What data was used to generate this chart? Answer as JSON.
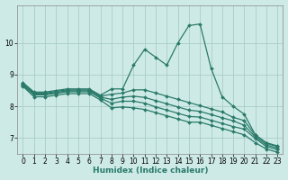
{
  "xlabel": "Humidex (Indice chaleur)",
  "ylabel": "",
  "bg_color": "#ceeae6",
  "line_color": "#2a7a6a",
  "grid_color": "#a8cdc8",
  "xlim": [
    -0.5,
    23.5
  ],
  "ylim": [
    6.5,
    11.2
  ],
  "xticks": [
    0,
    1,
    2,
    3,
    4,
    5,
    6,
    7,
    8,
    9,
    10,
    11,
    12,
    13,
    14,
    15,
    16,
    17,
    18,
    19,
    20,
    21,
    22,
    23
  ],
  "yticks": [
    7,
    8,
    9,
    10
  ],
  "tick_fontsize": 5.5,
  "xlabel_fontsize": 6.5,
  "series": [
    {
      "x": [
        0,
        1,
        2,
        3,
        4,
        5,
        6,
        7,
        8,
        9,
        10,
        11,
        12,
        13,
        14,
        15,
        16,
        17,
        18,
        19,
        20,
        21,
        22,
        23
      ],
      "y": [
        8.75,
        8.45,
        8.45,
        8.5,
        8.55,
        8.55,
        8.55,
        8.35,
        8.55,
        8.55,
        9.3,
        9.8,
        9.55,
        9.3,
        10.0,
        10.55,
        10.6,
        9.2,
        8.3,
        8.0,
        7.75,
        7.1,
        6.85,
        6.75
      ],
      "marker": "D",
      "markersize": 2.0,
      "linewidth": 0.9
    },
    {
      "x": [
        0,
        1,
        2,
        3,
        4,
        5,
        6,
        7,
        8,
        9,
        10,
        11,
        12,
        13,
        14,
        15,
        16,
        17,
        18,
        19,
        20,
        21,
        22,
        23
      ],
      "y": [
        8.72,
        8.42,
        8.42,
        8.47,
        8.52,
        8.52,
        8.52,
        8.32,
        8.38,
        8.42,
        8.52,
        8.52,
        8.42,
        8.32,
        8.22,
        8.12,
        8.02,
        7.92,
        7.82,
        7.65,
        7.55,
        7.08,
        6.83,
        6.73
      ],
      "marker": "D",
      "markersize": 2.0,
      "linewidth": 0.9
    },
    {
      "x": [
        0,
        1,
        2,
        3,
        4,
        5,
        6,
        7,
        8,
        9,
        10,
        11,
        12,
        13,
        14,
        15,
        16,
        17,
        18,
        19,
        20,
        21,
        22,
        23
      ],
      "y": [
        8.69,
        8.39,
        8.39,
        8.44,
        8.49,
        8.49,
        8.49,
        8.29,
        8.22,
        8.29,
        8.32,
        8.28,
        8.18,
        8.08,
        7.98,
        7.88,
        7.84,
        7.74,
        7.64,
        7.54,
        7.4,
        7.03,
        6.78,
        6.68
      ],
      "marker": "D",
      "markersize": 2.0,
      "linewidth": 0.9
    },
    {
      "x": [
        0,
        1,
        2,
        3,
        4,
        5,
        6,
        7,
        8,
        9,
        10,
        11,
        12,
        13,
        14,
        15,
        16,
        17,
        18,
        19,
        20,
        21,
        22,
        23
      ],
      "y": [
        8.66,
        8.36,
        8.36,
        8.41,
        8.46,
        8.46,
        8.46,
        8.26,
        8.1,
        8.16,
        8.16,
        8.1,
        7.98,
        7.88,
        7.78,
        7.68,
        7.66,
        7.56,
        7.46,
        7.36,
        7.28,
        6.98,
        6.73,
        6.63
      ],
      "marker": "D",
      "markersize": 2.0,
      "linewidth": 0.9
    },
    {
      "x": [
        0,
        1,
        2,
        3,
        4,
        5,
        6,
        7,
        8,
        9,
        10,
        11,
        12,
        13,
        14,
        15,
        16,
        17,
        18,
        19,
        20,
        21,
        22,
        23
      ],
      "y": [
        8.63,
        8.3,
        8.3,
        8.35,
        8.4,
        8.4,
        8.4,
        8.2,
        7.95,
        7.98,
        7.95,
        7.9,
        7.8,
        7.7,
        7.6,
        7.5,
        7.5,
        7.4,
        7.3,
        7.2,
        7.1,
        6.85,
        6.65,
        6.55
      ],
      "marker": "D",
      "markersize": 2.0,
      "linewidth": 0.9
    }
  ]
}
